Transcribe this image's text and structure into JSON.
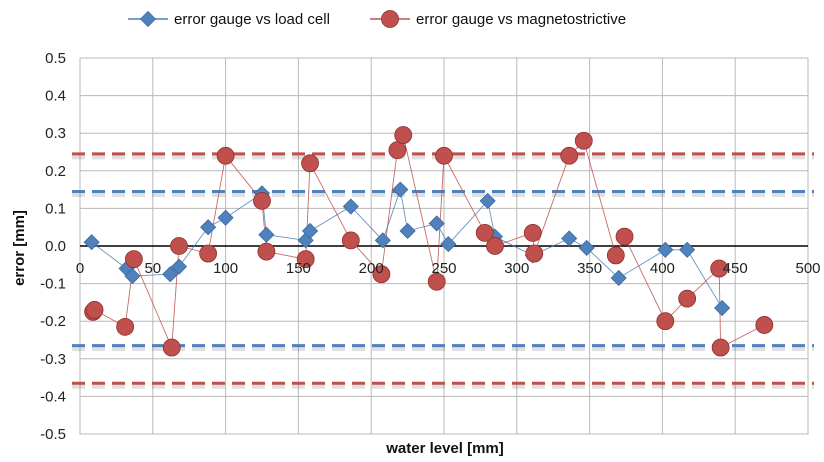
{
  "chart_data": {
    "type": "scatter",
    "xlabel": "water level [mm]",
    "ylabel": "error [mm]",
    "xlim": [
      0,
      500
    ],
    "ylim": [
      -0.5,
      0.5
    ],
    "x_ticks": [
      "0",
      "50",
      "100",
      "150",
      "200",
      "250",
      "300",
      "350",
      "400",
      "450",
      "500"
    ],
    "y_ticks": [
      "0.5",
      "0.4",
      "0.3",
      "0.2",
      "0.1",
      "0.0",
      "-0.1",
      "-0.2",
      "-0.3",
      "-0.4",
      "-0.5"
    ],
    "grid": true,
    "legend_position": "top",
    "series": [
      {
        "name": "error gauge vs load cell",
        "marker": "diamond",
        "color": "#4f81bd",
        "points": [
          [
            8,
            0.01
          ],
          [
            32,
            -0.06
          ],
          [
            36,
            -0.08
          ],
          [
            62,
            -0.075
          ],
          [
            68,
            -0.055
          ],
          [
            88,
            0.05
          ],
          [
            100,
            0.075
          ],
          [
            125,
            0.14
          ],
          [
            128,
            0.03
          ],
          [
            155,
            0.015
          ],
          [
            158,
            0.04
          ],
          [
            186,
            0.105
          ],
          [
            208,
            0.015
          ],
          [
            220,
            0.15
          ],
          [
            225,
            0.04
          ],
          [
            245,
            0.06
          ],
          [
            253,
            0.005
          ],
          [
            280,
            0.12
          ],
          [
            285,
            0.025
          ],
          [
            311,
            -0.025
          ],
          [
            336,
            0.02
          ],
          [
            348,
            -0.005
          ],
          [
            370,
            -0.085
          ],
          [
            402,
            -0.01
          ],
          [
            417,
            -0.01
          ],
          [
            441,
            -0.165
          ]
        ]
      },
      {
        "name": "error gauge vs magnetostrictive",
        "marker": "circle",
        "color": "#c0504d",
        "points": [
          [
            9,
            -0.175
          ],
          [
            10,
            -0.17
          ],
          [
            31,
            -0.215
          ],
          [
            37,
            -0.035
          ],
          [
            63,
            -0.27
          ],
          [
            68,
            0.0
          ],
          [
            88,
            -0.02
          ],
          [
            100,
            0.24
          ],
          [
            125,
            0.12
          ],
          [
            128,
            -0.015
          ],
          [
            155,
            -0.035
          ],
          [
            158,
            0.22
          ],
          [
            186,
            0.015
          ],
          [
            207,
            -0.075
          ],
          [
            218,
            0.255
          ],
          [
            222,
            0.295
          ],
          [
            245,
            -0.095
          ],
          [
            250,
            0.24
          ],
          [
            278,
            0.035
          ],
          [
            285,
            0.0
          ],
          [
            311,
            0.035
          ],
          [
            312,
            -0.02
          ],
          [
            336,
            0.24
          ],
          [
            346,
            0.28
          ],
          [
            368,
            -0.025
          ],
          [
            374,
            0.025
          ],
          [
            402,
            -0.2
          ],
          [
            417,
            -0.14
          ],
          [
            439,
            -0.06
          ],
          [
            440,
            -0.27
          ],
          [
            470,
            -0.21
          ]
        ]
      }
    ],
    "reference_lines": [
      {
        "y": 0.245,
        "style": "dashed",
        "color": "#c0504d"
      },
      {
        "y": 0.145,
        "style": "dashed",
        "color": "#4f81bd"
      },
      {
        "y": -0.265,
        "style": "dashed",
        "color": "#4f81bd"
      },
      {
        "y": -0.365,
        "style": "dashed",
        "color": "#c0504d"
      }
    ]
  }
}
